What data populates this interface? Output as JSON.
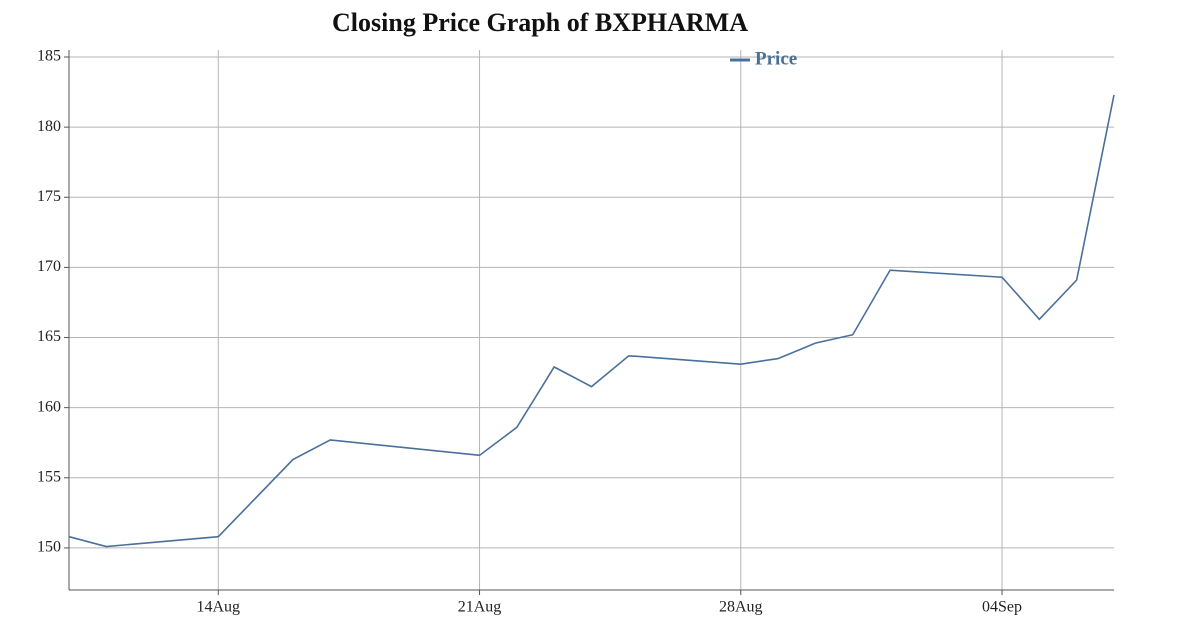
{
  "chart_data": {
    "type": "line",
    "title": "Closing Price Graph of BXPHARMA",
    "x": [
      "08-10",
      "08-11",
      "08-14",
      "08-16",
      "08-17",
      "08-21",
      "08-22",
      "08-23",
      "08-24",
      "08-25",
      "08-28",
      "08-29",
      "08-30",
      "08-31",
      "09-01",
      "09-04",
      "09-05",
      "09-06",
      "09-07"
    ],
    "series": [
      {
        "name": "Price",
        "color": "#4a6f9a",
        "values": [
          150.8,
          150.1,
          150.8,
          156.3,
          157.7,
          156.6,
          158.6,
          162.9,
          161.5,
          163.7,
          163.1,
          163.5,
          164.6,
          165.2,
          169.8,
          169.3,
          166.3,
          169.1,
          182.3
        ]
      }
    ],
    "xlim": [
      "08-10",
      "09-07"
    ],
    "xticks": [
      {
        "value": "08-14",
        "label": "14Aug"
      },
      {
        "value": "08-21",
        "label": "21Aug"
      },
      {
        "value": "08-28",
        "label": "28Aug"
      },
      {
        "value": "09-04",
        "label": "04Sep"
      }
    ],
    "ylim": [
      147,
      185.5
    ],
    "yticks": [
      150,
      155,
      160,
      165,
      170,
      175,
      180,
      185
    ],
    "grid": true,
    "legend": "top"
  }
}
